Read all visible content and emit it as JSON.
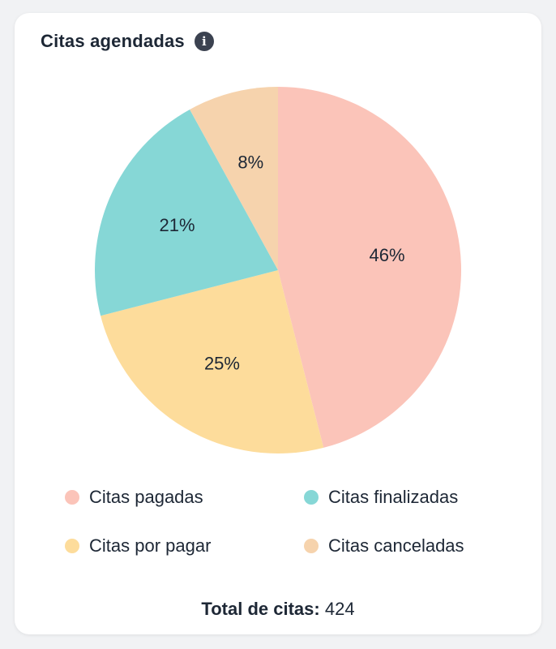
{
  "header": {
    "title": "Citas agendadas",
    "info_icon": "info-icon"
  },
  "chart_data": {
    "type": "pie",
    "title": "Citas agendadas",
    "slices": [
      {
        "label": "Citas pagadas",
        "value": 46,
        "display": "46%",
        "color": "#fbc4b9"
      },
      {
        "label": "Citas por pagar",
        "value": 25,
        "display": "25%",
        "color": "#fddc9b"
      },
      {
        "label": "Citas finalizadas",
        "value": 21,
        "display": "21%",
        "color": "#86d7d6"
      },
      {
        "label": "Citas canceladas",
        "value": 8,
        "display": "8%",
        "color": "#f6d3ad"
      }
    ],
    "legend_placement": "bottom"
  },
  "legend": [
    {
      "label": "Citas pagadas",
      "color": "#fbc4b9"
    },
    {
      "label": "Citas finalizadas",
      "color": "#86d7d6"
    },
    {
      "label": "Citas por pagar",
      "color": "#fddc9b"
    },
    {
      "label": "Citas canceladas",
      "color": "#f6d3ad"
    }
  ],
  "total": {
    "label": "Total de citas:",
    "value": "424"
  }
}
